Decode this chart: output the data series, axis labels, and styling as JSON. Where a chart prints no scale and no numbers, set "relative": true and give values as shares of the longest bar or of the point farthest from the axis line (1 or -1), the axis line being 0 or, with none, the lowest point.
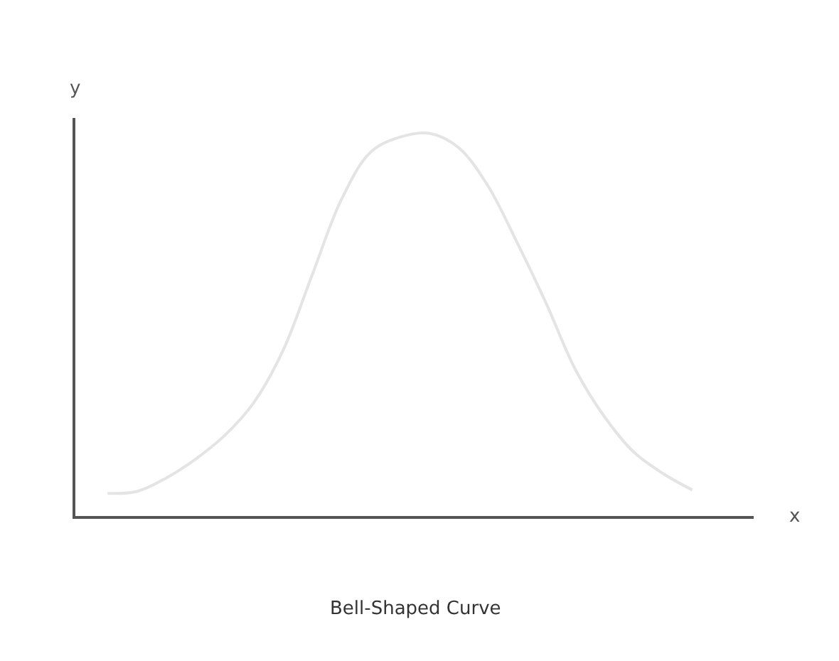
{
  "chart_data": {
    "type": "line",
    "title": "Bell-Shaped Curve",
    "xlabel": "x",
    "ylabel": "y",
    "relative": true,
    "categories": [
      null,
      null,
      null,
      null,
      null,
      null,
      null,
      null,
      null,
      null,
      null,
      null,
      null,
      null,
      null,
      null,
      null,
      null,
      null,
      null,
      null,
      null,
      null,
      null
    ],
    "series": [
      {
        "color": "#e4e4e4",
        "values": [
          null,
          0.059,
          0.064,
          0.099,
          0.148,
          0.21,
          0.296,
          0.432,
          0.63,
          0.827,
          0.951,
          0.99,
          1.0,
          0.963,
          0.864,
          0.716,
          0.556,
          0.383,
          0.259,
          0.167,
          0.111,
          0.068,
          null,
          null
        ]
      }
    ],
    "marker": "none",
    "line_style": "solid"
  }
}
